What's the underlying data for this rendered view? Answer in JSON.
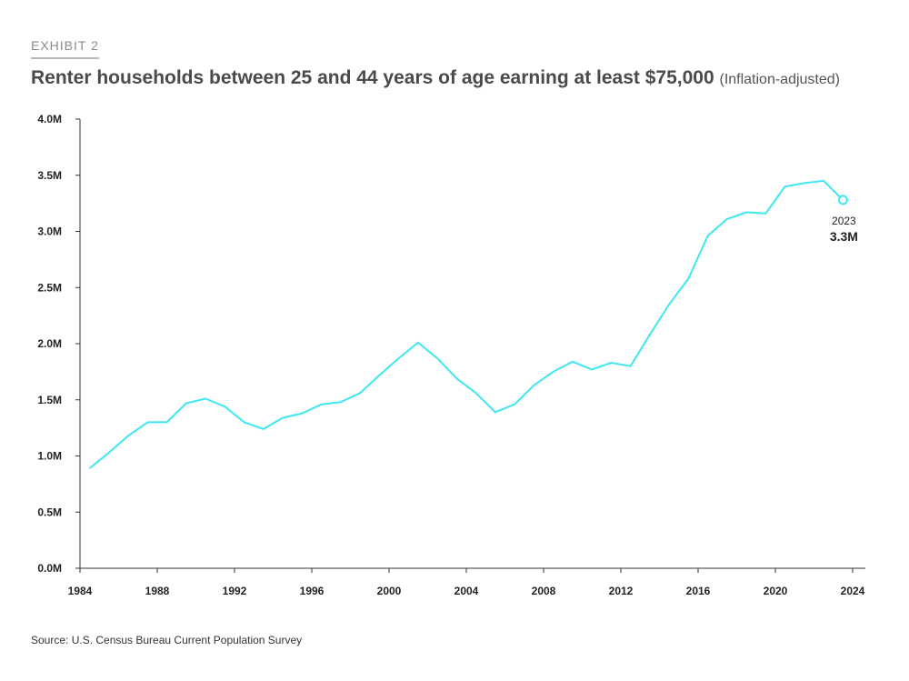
{
  "exhibit_label": "EXHIBIT 2",
  "title": "Renter households between 25 and 44 years of age earning at least $75,000",
  "subtitle": "(Inflation-adjusted)",
  "source": "Source: U.S. Census Bureau Current Population Survey",
  "colors": {
    "line": "#3ee8f0",
    "axis": "#333333"
  },
  "chart_data": {
    "type": "line",
    "title": "Renter households between 25 and 44 years of age earning at least $75,000",
    "xlabel": "",
    "ylabel": "",
    "xlim": [
      1984,
      2024
    ],
    "ylim": [
      0,
      4.0
    ],
    "grid": false,
    "x_ticks": [
      1984,
      1988,
      1992,
      1996,
      2000,
      2004,
      2008,
      2012,
      2016,
      2020,
      2024
    ],
    "x_tick_labels": [
      "1984",
      "1988",
      "1992",
      "1996",
      "2000",
      "2004",
      "2008",
      "2012",
      "2016",
      "2020",
      "2024"
    ],
    "y_ticks": [
      0,
      0.5,
      1.0,
      1.5,
      2.0,
      2.5,
      3.0,
      3.5,
      4.0
    ],
    "y_tick_labels": [
      "0.0M",
      "0.5M",
      "1.0M",
      "1.5M",
      "2.0M",
      "2.5M",
      "3.0M",
      "3.5M",
      "4.0M"
    ],
    "series": [
      {
        "x": [
          1984.5,
          1985.5,
          1986.5,
          1987.5,
          1988.5,
          1989.5,
          1990.5,
          1991.5,
          1992.5,
          1993.5,
          1994.5,
          1995.5,
          1996.5,
          1997.5,
          1998.5,
          1999.5,
          2000.5,
          2001.5,
          2002.5,
          2003.5,
          2004.5,
          2005.5,
          2006.5,
          2007.5,
          2008.5,
          2009.5,
          2010.5,
          2011.5,
          2012.5,
          2013.5,
          2014.5,
          2015.5,
          2016.5,
          2017.5,
          2018.5,
          2019.5,
          2020.5,
          2021.5,
          2022.5,
          2023.5
        ],
        "values": [
          0.89,
          1.03,
          1.18,
          1.3,
          1.3,
          1.47,
          1.51,
          1.44,
          1.3,
          1.24,
          1.34,
          1.38,
          1.46,
          1.48,
          1.56,
          1.72,
          1.87,
          2.01,
          1.87,
          1.69,
          1.56,
          1.39,
          1.46,
          1.63,
          1.75,
          1.84,
          1.77,
          1.83,
          1.8,
          2.08,
          2.35,
          2.58,
          2.96,
          3.11,
          3.17,
          3.16,
          3.4,
          3.43,
          3.45,
          3.28
        ]
      }
    ],
    "annotation": {
      "year": "2023",
      "value": "3.3M",
      "x": 2023.5,
      "y": 3.28
    }
  }
}
